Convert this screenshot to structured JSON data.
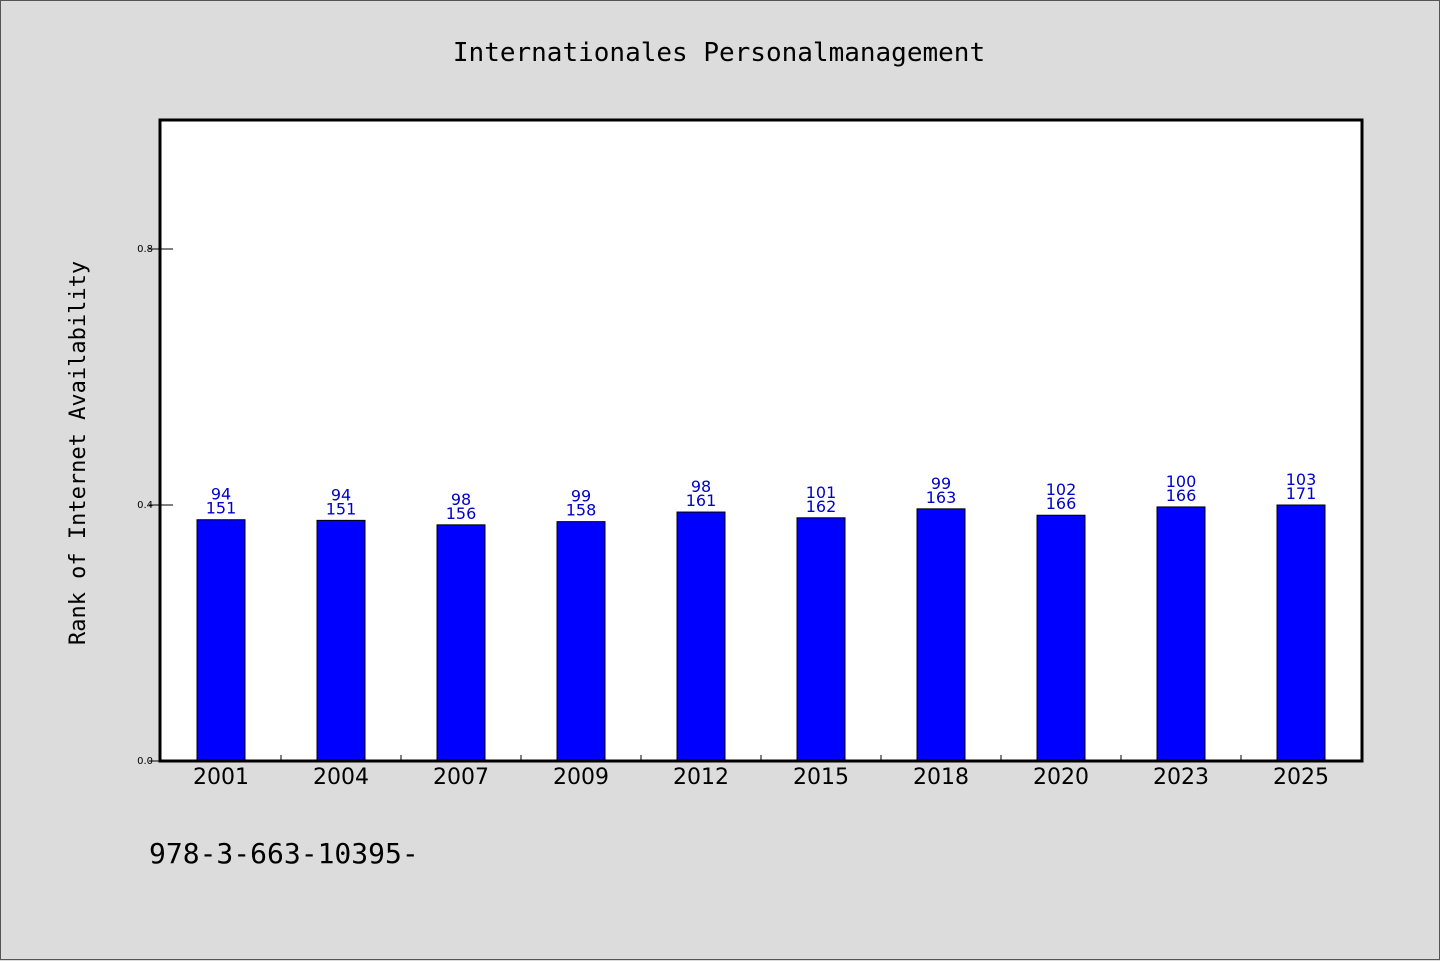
{
  "chart_data": {
    "type": "bar",
    "title": "Internationales Personalmanagement",
    "xlabel": "",
    "ylabel": "Rank of Internet Availability",
    "categories": [
      "2001",
      "2004",
      "2007",
      "2009",
      "2012",
      "2015",
      "2018",
      "2020",
      "2023",
      "2025"
    ],
    "values": [
      0.377,
      0.376,
      0.369,
      0.374,
      0.389,
      0.38,
      0.394,
      0.384,
      0.397,
      0.4
    ],
    "label_top": [
      "94",
      "94",
      "98",
      "99",
      "98",
      "101",
      "99",
      "102",
      "100",
      "103"
    ],
    "label_bottom": [
      "151",
      "151",
      "156",
      "158",
      "161",
      "162",
      "163",
      "166",
      "166",
      "171"
    ],
    "ylim": [
      0,
      1.0
    ],
    "yticks": [
      0.0,
      0.4,
      0.8
    ],
    "ytick_labels": [
      "0.0",
      "0.4",
      "0.8"
    ],
    "grid": false,
    "bar_color": "#0000ff",
    "label_color": "#0000cc"
  },
  "footer": {
    "text": "978-3-663-10395-"
  }
}
